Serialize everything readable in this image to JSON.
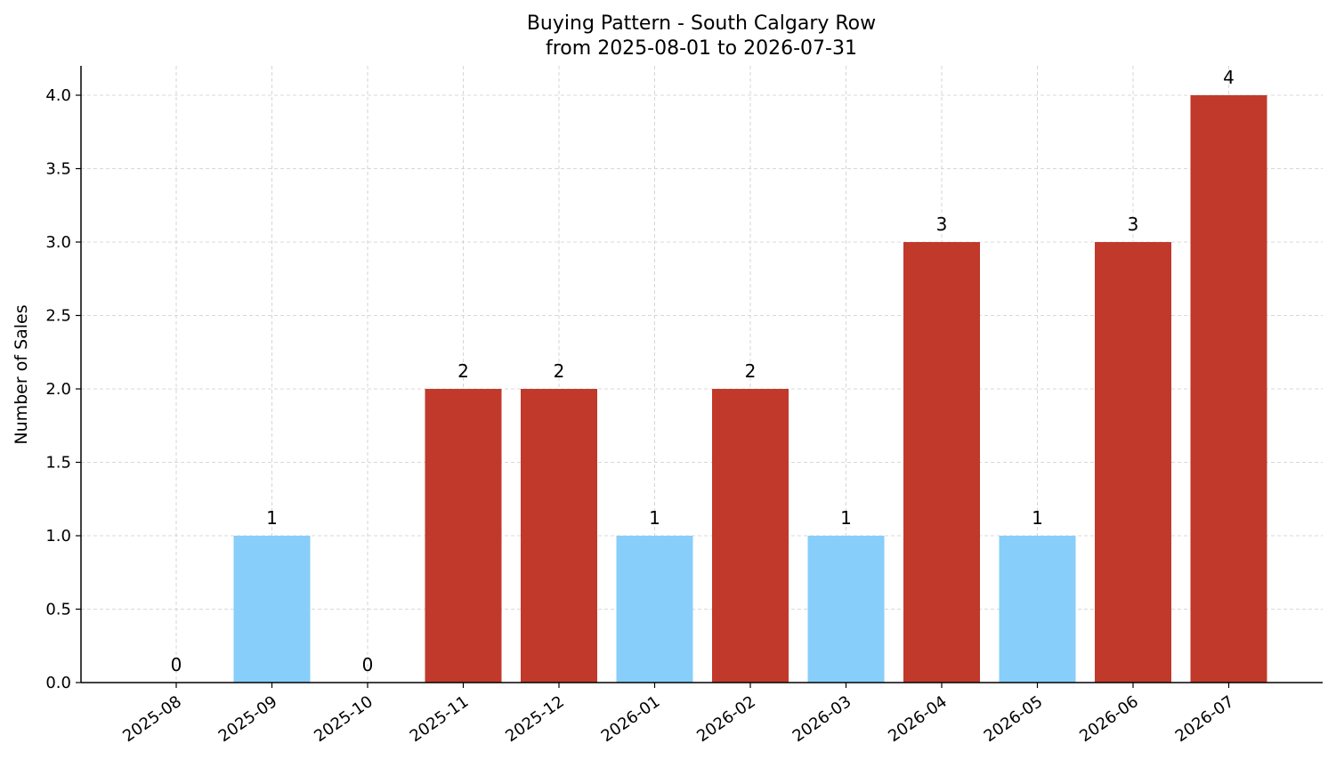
{
  "chart_data": {
    "type": "bar",
    "title": "Buying Pattern - South Calgary Row",
    "subtitle": "from 2025-08-01 to 2026-07-31",
    "xlabel": "",
    "ylabel": "Number of Sales",
    "categories": [
      "2025-08",
      "2025-09",
      "2025-10",
      "2025-11",
      "2025-12",
      "2026-01",
      "2026-02",
      "2026-03",
      "2026-04",
      "2026-05",
      "2026-06",
      "2026-07"
    ],
    "values": [
      0,
      1,
      0,
      2,
      2,
      1,
      2,
      1,
      3,
      1,
      3,
      4
    ],
    "data_labels": [
      "0",
      "1",
      "0",
      "2",
      "2",
      "1",
      "2",
      "1",
      "3",
      "1",
      "3",
      "4"
    ],
    "ylim": [
      0,
      4.2
    ],
    "yticks": [
      "0.0",
      "0.5",
      "1.0",
      "1.5",
      "2.0",
      "2.5",
      "3.0",
      "3.5",
      "4.0"
    ],
    "ytick_values": [
      0,
      0.5,
      1.0,
      1.5,
      2.0,
      2.5,
      3.0,
      3.5,
      4.0
    ],
    "grid": true,
    "colors": {
      "high": "#c0392b",
      "low": "#87cefa"
    },
    "color_threshold": 2
  }
}
